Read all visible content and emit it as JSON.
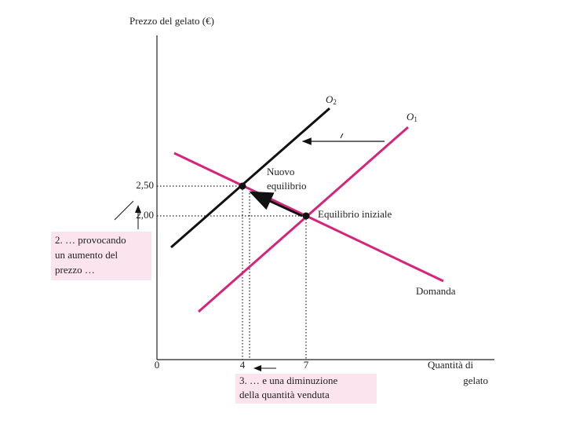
{
  "axis": {
    "y_title": "Prezzo del gelato (€)",
    "x_title_line1": "Quantità di",
    "x_title_line2": "gelato",
    "y_ticks": [
      "2,50",
      "2,00"
    ],
    "x_ticks": [
      "0",
      "4",
      "7"
    ]
  },
  "curves": {
    "supply_new": "O",
    "supply_new_sub": "2",
    "supply_old": "O",
    "supply_old_sub": "1",
    "demand": "Domanda"
  },
  "points": {
    "new_line1": "Nuovo",
    "new_line2": "equilibrio",
    "initial": "Equilibrio iniziale"
  },
  "notes": {
    "price_lines": [
      "2. … provocando",
      "un aumento del",
      "prezzo …"
    ],
    "quantity_lines": [
      "3. … e una diminuzione",
      "della quantità venduta"
    ]
  }
}
